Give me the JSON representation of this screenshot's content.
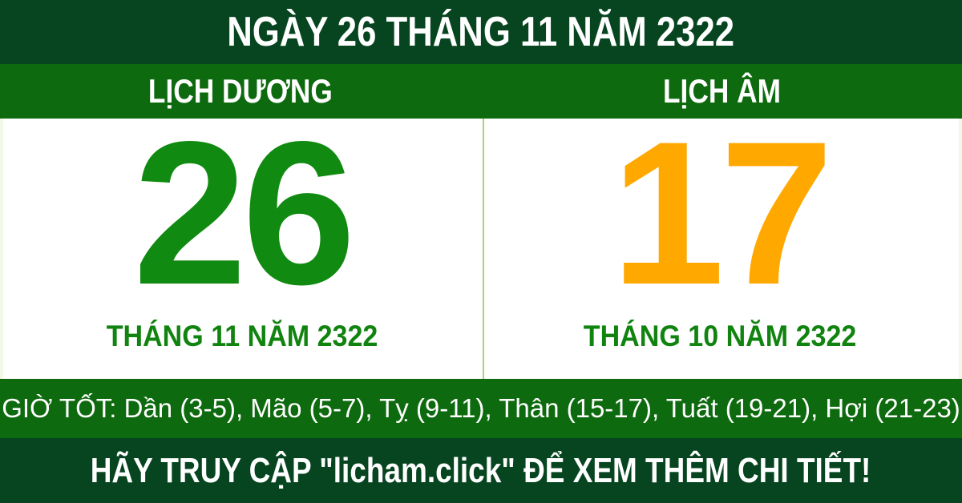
{
  "header": {
    "title": "NGÀY 26 THÁNG 11 NĂM 2322"
  },
  "calendar": {
    "solar": {
      "label": "LỊCH DƯƠNG",
      "day": "26",
      "month_year": "THÁNG 11 NĂM 2322"
    },
    "lunar": {
      "label": "LỊCH ÂM",
      "day": "17",
      "month_year": "THÁNG 10 NĂM 2322"
    }
  },
  "good_hours": {
    "label": "GIỜ TỐT:",
    "hours_text": " Dần (3-5), Mão (5-7), Tỵ (9-11), Thân (15-17), Tuất (19-21), Hợi (21-23)"
  },
  "footer": {
    "cta": "HÃY TRUY CẬP \"licham.click\" ĐỂ XEM THÊM CHI TIẾT!"
  },
  "colors": {
    "dark_green": "#06451f",
    "green": "#0e6a0e",
    "solar_day_green": "#108a10",
    "lunar_day_orange": "#ffa800",
    "month_text_green": "#11830f",
    "divider_light_green": "#a6d57c",
    "text_white": "#ffffff"
  }
}
